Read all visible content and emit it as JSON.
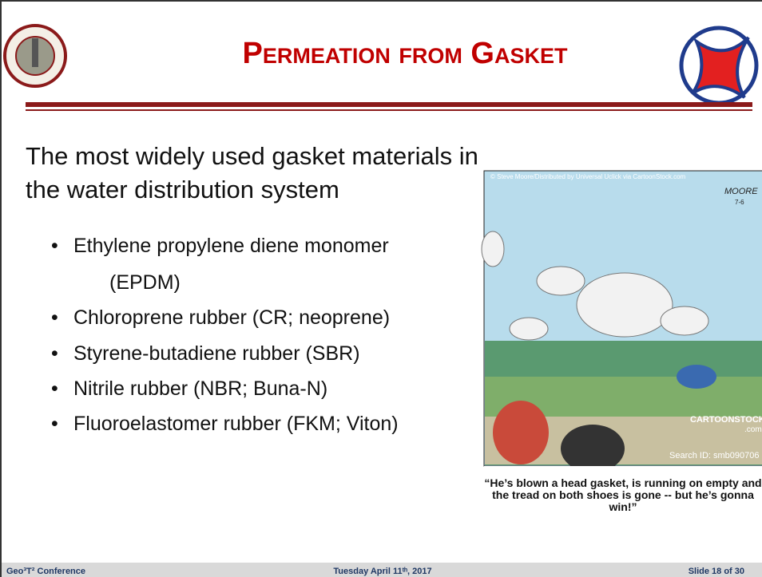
{
  "header": {
    "title": "Permeation from Gasket"
  },
  "body": {
    "intro": [
      "The most widely used gasket materials in",
      "the water distribution system"
    ],
    "bullets": [
      "Ethylene propylene diene monomer",
      "(EPDM)",
      "Chloroprene rubber (CR; neoprene)",
      "Styrene-butadiene rubber (SBR)",
      "Nitrile rubber (NBR; Buna-N)",
      "Fluoroelastomer rubber (FKM; Viton)"
    ]
  },
  "cartoon": {
    "credit": "© Steve Moore/Distributed by Universal Uclick via CartoonStock.com",
    "signature": "MOORE",
    "date": "7-6",
    "watermark": "CARTOONSTOCK",
    "watermark_suffix": ".com",
    "search_id": "Search ID: smb090706",
    "caption": "“He’s blown a head gasket, is running on empty and the tread on both shoes is gone -- but he’s gonna win!”"
  },
  "footer": {
    "left": "Geo³T² Conference",
    "center": "Tuesday April 11ᵗʰ, 2017",
    "right": "Slide 18 of 30"
  }
}
